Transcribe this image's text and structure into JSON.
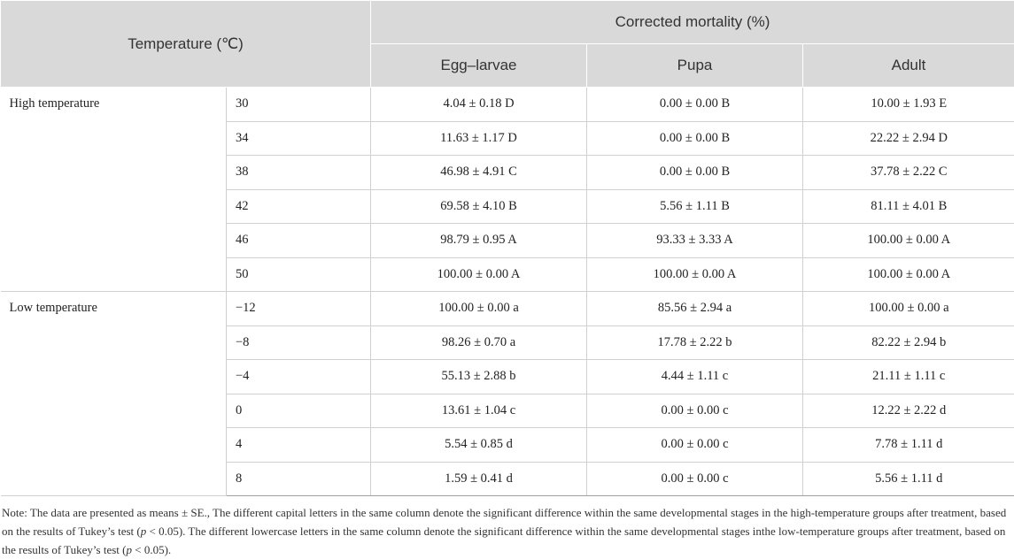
{
  "header": {
    "temperature": "Temperature (℃)",
    "corrected_mortality": "Corrected mortality (%)",
    "stages": [
      "Egg–larvae",
      "Pupa",
      "Adult"
    ]
  },
  "groups": {
    "high": {
      "label": "High temperature",
      "rows": [
        {
          "temp": "30",
          "egg": "4.04 ± 0.18 D",
          "pupa": "0.00 ± 0.00 B",
          "adult": "10.00 ± 1.93 E"
        },
        {
          "temp": "34",
          "egg": "11.63 ± 1.17 D",
          "pupa": "0.00 ± 0.00 B",
          "adult": "22.22 ± 2.94 D"
        },
        {
          "temp": "38",
          "egg": "46.98 ± 4.91 C",
          "pupa": "0.00 ± 0.00 B",
          "adult": "37.78 ± 2.22 C"
        },
        {
          "temp": "42",
          "egg": "69.58 ± 4.10 B",
          "pupa": "5.56 ± 1.11 B",
          "adult": "81.11 ± 4.01 B"
        },
        {
          "temp": "46",
          "egg": "98.79 ± 0.95 A",
          "pupa": "93.33 ± 3.33 A",
          "adult": "100.00 ± 0.00 A"
        },
        {
          "temp": "50",
          "egg": "100.00 ± 0.00 A",
          "pupa": "100.00 ± 0.00 A",
          "adult": "100.00 ± 0.00 A"
        }
      ]
    },
    "low": {
      "label": "Low temperature",
      "rows": [
        {
          "temp": "−12",
          "egg": "100.00 ± 0.00 a",
          "pupa": "85.56 ± 2.94 a",
          "adult": "100.00 ± 0.00 a"
        },
        {
          "temp": "−8",
          "egg": "98.26 ± 0.70 a",
          "pupa": "17.78 ± 2.22 b",
          "adult": "82.22 ± 2.94 b"
        },
        {
          "temp": "−4",
          "egg": "55.13 ± 2.88 b",
          "pupa": "4.44 ± 1.11 c",
          "adult": "21.11 ± 1.11 c"
        },
        {
          "temp": "0",
          "egg": "13.61 ± 1.04 c",
          "pupa": "0.00 ± 0.00 c",
          "adult": "12.22 ± 2.22 d"
        },
        {
          "temp": "4",
          "egg": "5.54 ± 0.85 d",
          "pupa": "0.00 ± 0.00 c",
          "adult": "7.78 ± 1.11 d"
        },
        {
          "temp": "8",
          "egg": "1.59 ± 0.41 d",
          "pupa": "0.00 ± 0.00 c",
          "adult": "5.56 ± 1.11 d"
        }
      ]
    }
  },
  "note": {
    "part1": "Note: The data are presented as means ± SE., The different capital letters in the same column denote the significant difference within the same developmental stages in the high-temperature groups after treatment, based on the results of Tukey’s test (",
    "p1": "p",
    "part2": " < 0.05). The different lowercase letters in the same column denote the significant difference within the same developmental stages inthe low-temperature groups after treatment, based on the results of Tukey’s test (",
    "p2": "p",
    "part3": " < 0.05)."
  }
}
